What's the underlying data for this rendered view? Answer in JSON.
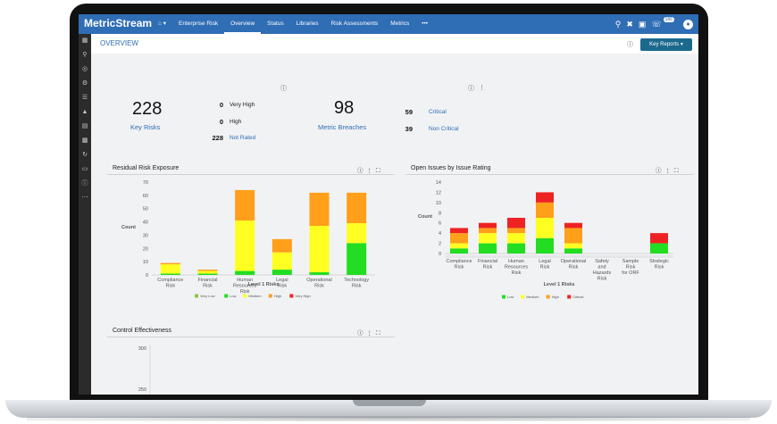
{
  "brand": "MetricStream",
  "nav": {
    "home": "⌂ ▾",
    "items": [
      "Enterprise Risk",
      "Overview",
      "Status",
      "Libraries",
      "Risk Assessments",
      "Metrics",
      "•••"
    ],
    "active_index": 1,
    "notifications_count": "186"
  },
  "page": {
    "title": "OVERVIEW",
    "key_reports": "Key Reports ▾"
  },
  "summary": {
    "key_risks": {
      "value": "228",
      "label": "Key Risks"
    },
    "ratings": [
      {
        "count": "0",
        "label": "Very High"
      },
      {
        "count": "0",
        "label": "High"
      },
      {
        "count": "228",
        "label": "Not Rated"
      }
    ],
    "metric_breaches": {
      "value": "98",
      "label": "Metric Breaches"
    },
    "breach_types": [
      {
        "count": "59",
        "label": "Critical"
      },
      {
        "count": "39",
        "label": "Non Critical"
      }
    ]
  },
  "panels": {
    "residual": "Residual Risk Exposure",
    "open_issues": "Open Issues by Issue Rating",
    "control": "Control Effectiveness"
  },
  "chart_data": [
    {
      "type": "bar",
      "stacked": true,
      "title": "Residual Risk Exposure",
      "xlabel": "Level 1 Risks",
      "ylabel": "Count",
      "ylim": [
        0,
        70
      ],
      "yticks": [
        0,
        10,
        20,
        30,
        40,
        50,
        60,
        70
      ],
      "categories": [
        "Compliance Risk",
        "Financial Risk",
        "Human Resources Risk",
        "Legal Risk",
        "Operational Risk",
        "Technology Risk"
      ],
      "series": [
        {
          "name": "Very Low",
          "color": "#8dc63f",
          "values": [
            0,
            0,
            0,
            0,
            0,
            0
          ]
        },
        {
          "name": "Low",
          "color": "#22dd22",
          "values": [
            1,
            1,
            3,
            4,
            2,
            24
          ]
        },
        {
          "name": "Medium",
          "color": "#ffff22",
          "values": [
            7,
            2,
            38,
            13,
            35,
            15
          ]
        },
        {
          "name": "High",
          "color": "#ff9f1a",
          "values": [
            1,
            1,
            23,
            10,
            25,
            23
          ]
        },
        {
          "name": "Very High",
          "color": "#ee2222",
          "values": [
            0,
            0,
            0,
            0,
            0,
            0
          ]
        }
      ]
    },
    {
      "type": "bar",
      "stacked": true,
      "title": "Open Issues by Issue Rating",
      "xlabel": "Level 1 Risks",
      "ylabel": "Count",
      "ylim": [
        0,
        14
      ],
      "yticks": [
        0,
        2,
        4,
        6,
        8,
        10,
        12,
        14
      ],
      "categories": [
        "Compliance Risk",
        "Financial Risk",
        "Human Resources Risk",
        "Legal Risk",
        "Operational Risk",
        "Safety and Hazards Risk",
        "Sample Risk for ORF",
        "Strategic Risk"
      ],
      "series": [
        {
          "name": "Low",
          "color": "#22dd22",
          "values": [
            1,
            2,
            2,
            3,
            1,
            0,
            0,
            2
          ]
        },
        {
          "name": "Medium",
          "color": "#ffff22",
          "values": [
            1,
            2,
            2,
            4,
            1,
            0,
            0,
            0
          ]
        },
        {
          "name": "High",
          "color": "#ff9f1a",
          "values": [
            2,
            1,
            1,
            3,
            3,
            0,
            0,
            0
          ]
        },
        {
          "name": "Critical",
          "color": "#ee2222",
          "values": [
            1,
            1,
            2,
            2,
            1,
            0,
            0,
            2
          ]
        }
      ]
    },
    {
      "type": "bar",
      "title": "Control Effectiveness",
      "yticks": [
        300,
        250
      ],
      "categories": [],
      "series": []
    }
  ]
}
